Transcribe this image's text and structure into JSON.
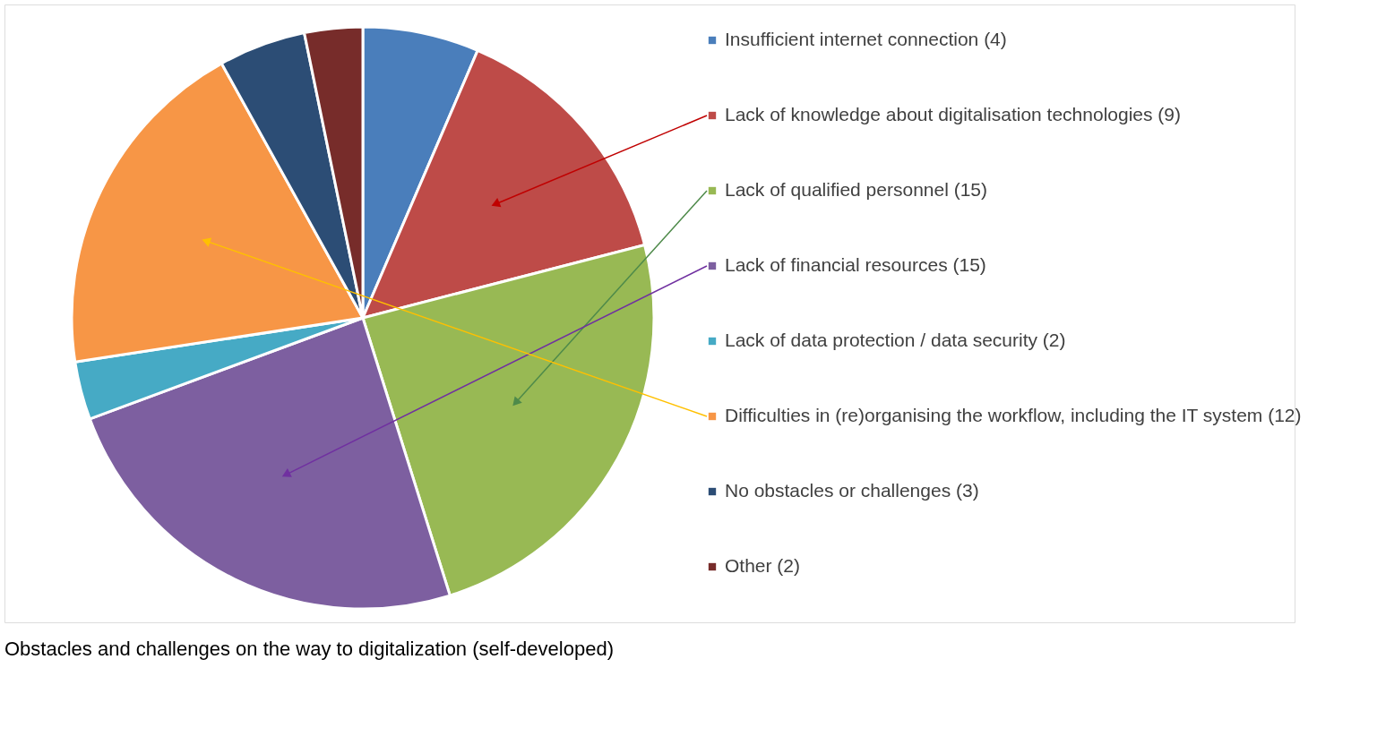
{
  "chart_data": {
    "type": "pie",
    "title": "Obstacles and challenges on the way to digitalization (self-developed)",
    "categories": [
      "Insufficient internet connection (4)",
      "Lack of knowledge about digitalisation technologies (9)",
      "Lack of qualified personnel (15)",
      "Lack of financial resources (15)",
      "Lack of data protection / data security (2)",
      "Difficulties in (re)organising the workflow, including the IT system (12)",
      "No obstacles or challenges (3)",
      "Other (2)"
    ],
    "values": [
      4,
      9,
      15,
      15,
      2,
      12,
      3,
      2
    ],
    "colors": [
      "#4a7ebb",
      "#be4b48",
      "#98b954",
      "#7d5fa0",
      "#46aac5",
      "#f79646",
      "#2c4d75",
      "#772c2a"
    ],
    "legend": "right"
  }
}
